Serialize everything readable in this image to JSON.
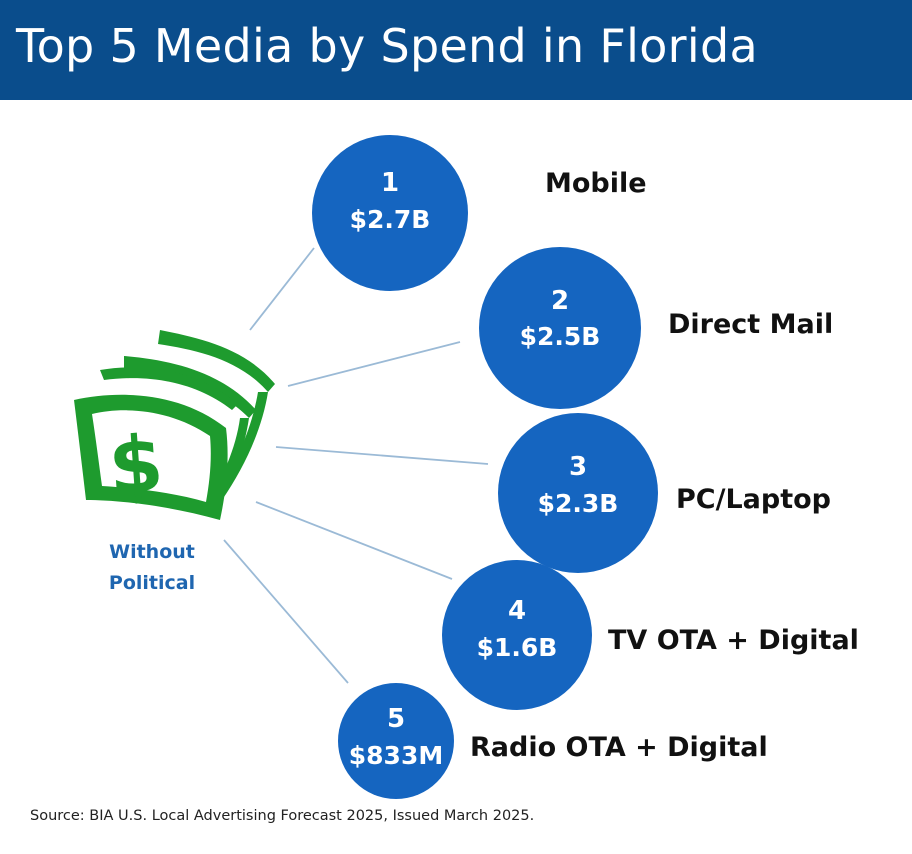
{
  "header": {
    "title": "Top 5 Media by Spend in Florida",
    "background_color": "#0a4d8c"
  },
  "icon": {
    "name": "money-stack-icon",
    "color": "#1e9b2e",
    "caption_line1": "Without",
    "caption_line2": "Political",
    "caption_color": "#1f66b0"
  },
  "items": [
    {
      "rank": "1",
      "value": "$2.7B",
      "label": "Mobile"
    },
    {
      "rank": "2",
      "value": "$2.5B",
      "label": "Direct Mail"
    },
    {
      "rank": "3",
      "value": "$2.3B",
      "label": "PC/Laptop"
    },
    {
      "rank": "4",
      "value": "$1.6B",
      "label": "TV OTA + Digital"
    },
    {
      "rank": "5",
      "value": "$833M",
      "label": "Radio OTA + Digital"
    }
  ],
  "circle_color": "#1565c0",
  "connector_color": "#9bbad6",
  "source": "Source: BIA U.S. Local Advertising Forecast 2025, Issued March 2025."
}
